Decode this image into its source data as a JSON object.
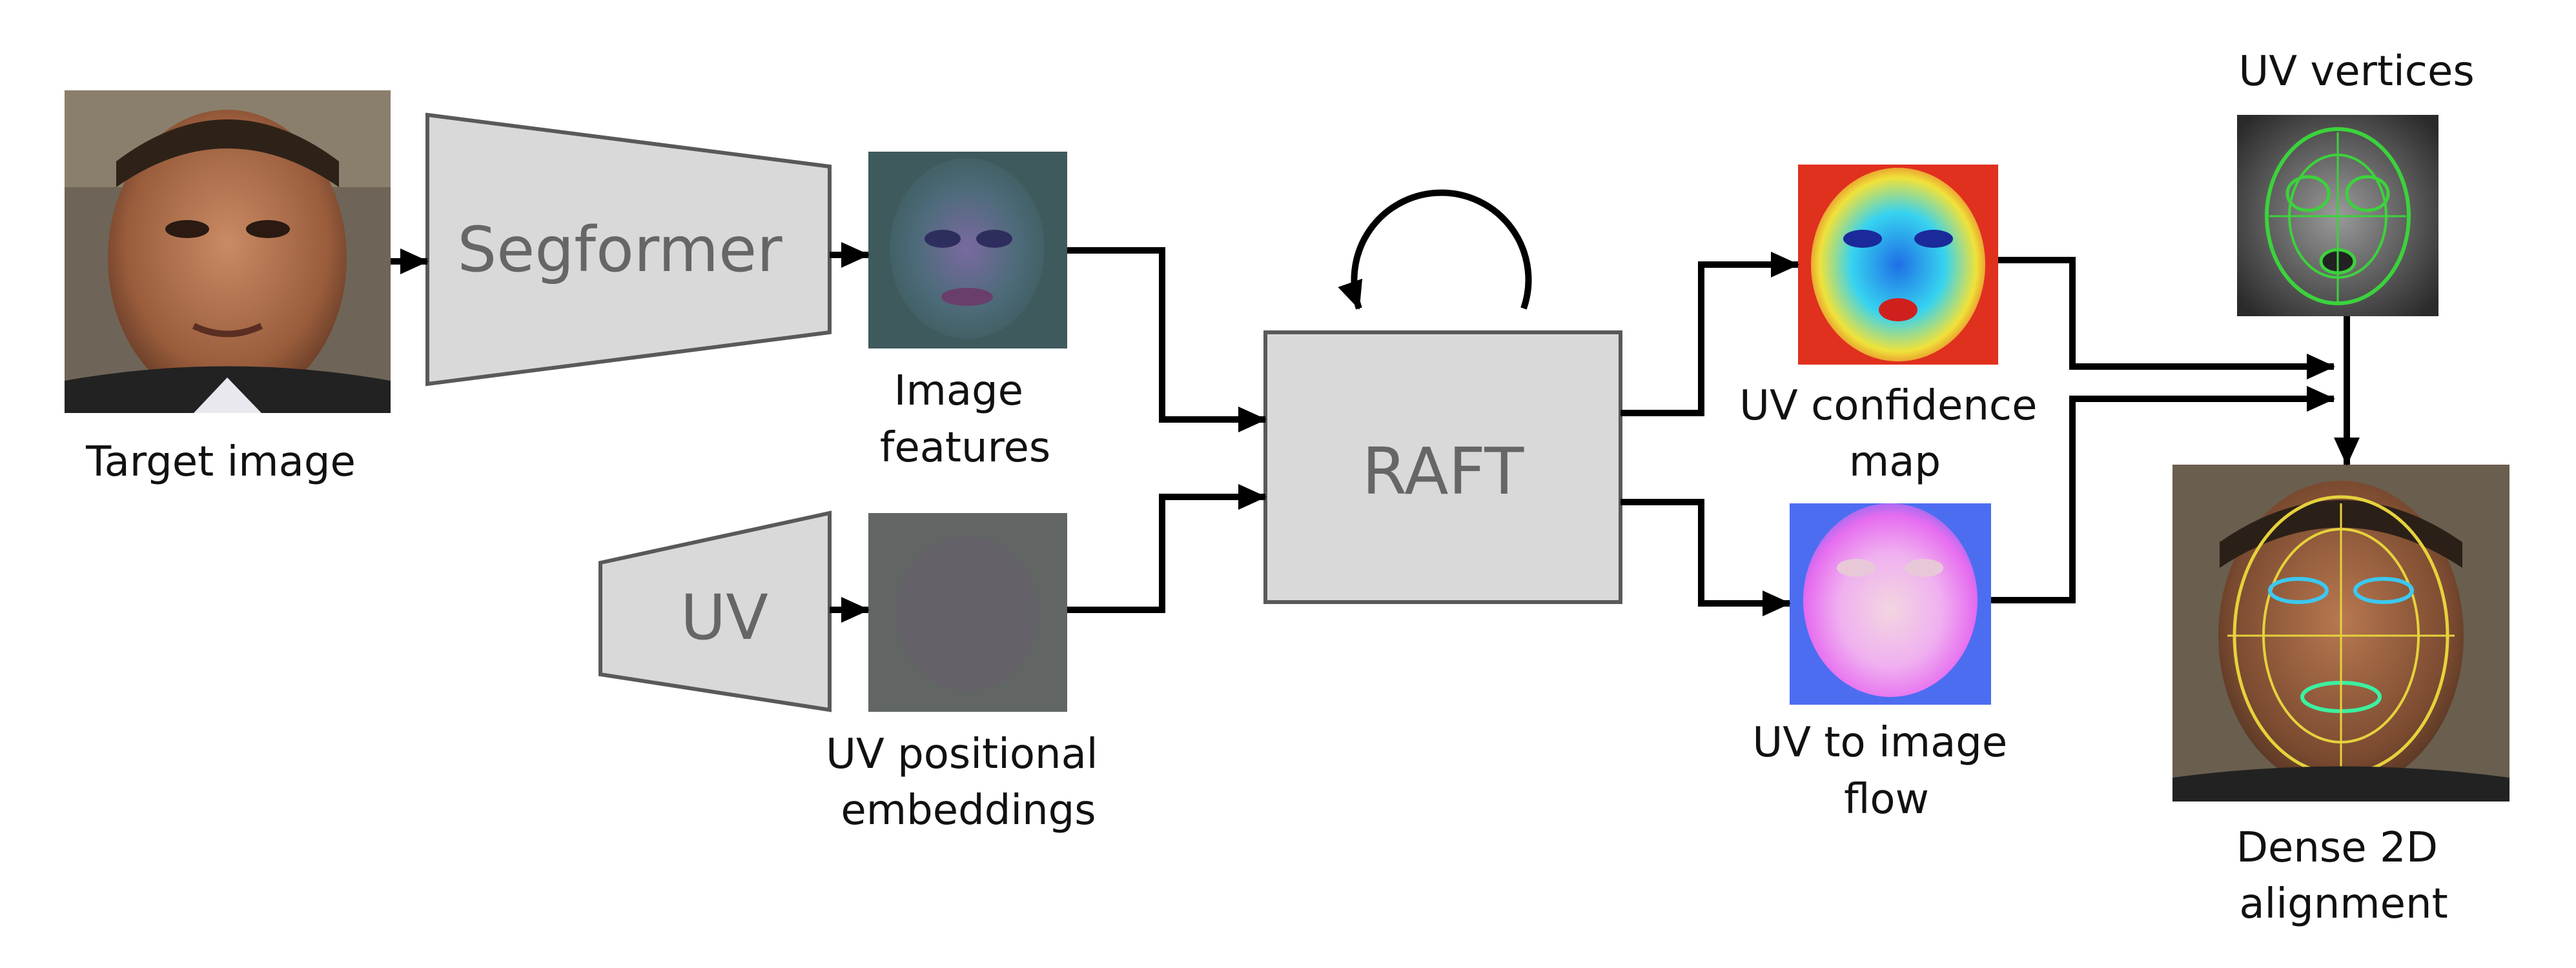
{
  "blocks": {
    "segformer": "Segformer",
    "uv_encoder": "UV",
    "raft": "RAFT"
  },
  "labels": {
    "target_image": "Target image",
    "image_features": [
      "Image",
      "features"
    ],
    "uv_positional_embeddings": [
      "UV positional",
      "embeddings"
    ],
    "uv_confidence_map": [
      "UV confidence",
      "map"
    ],
    "uv_to_image_flow": [
      "UV to image",
      "flow"
    ],
    "uv_vertices": "UV vertices",
    "dense_alignment": [
      "Dense 2D",
      "alignment"
    ]
  },
  "colors": {
    "block_fill": "#d9d9d9",
    "block_stroke": "#595959",
    "block_text": "#666666",
    "arrow": "#000000"
  }
}
